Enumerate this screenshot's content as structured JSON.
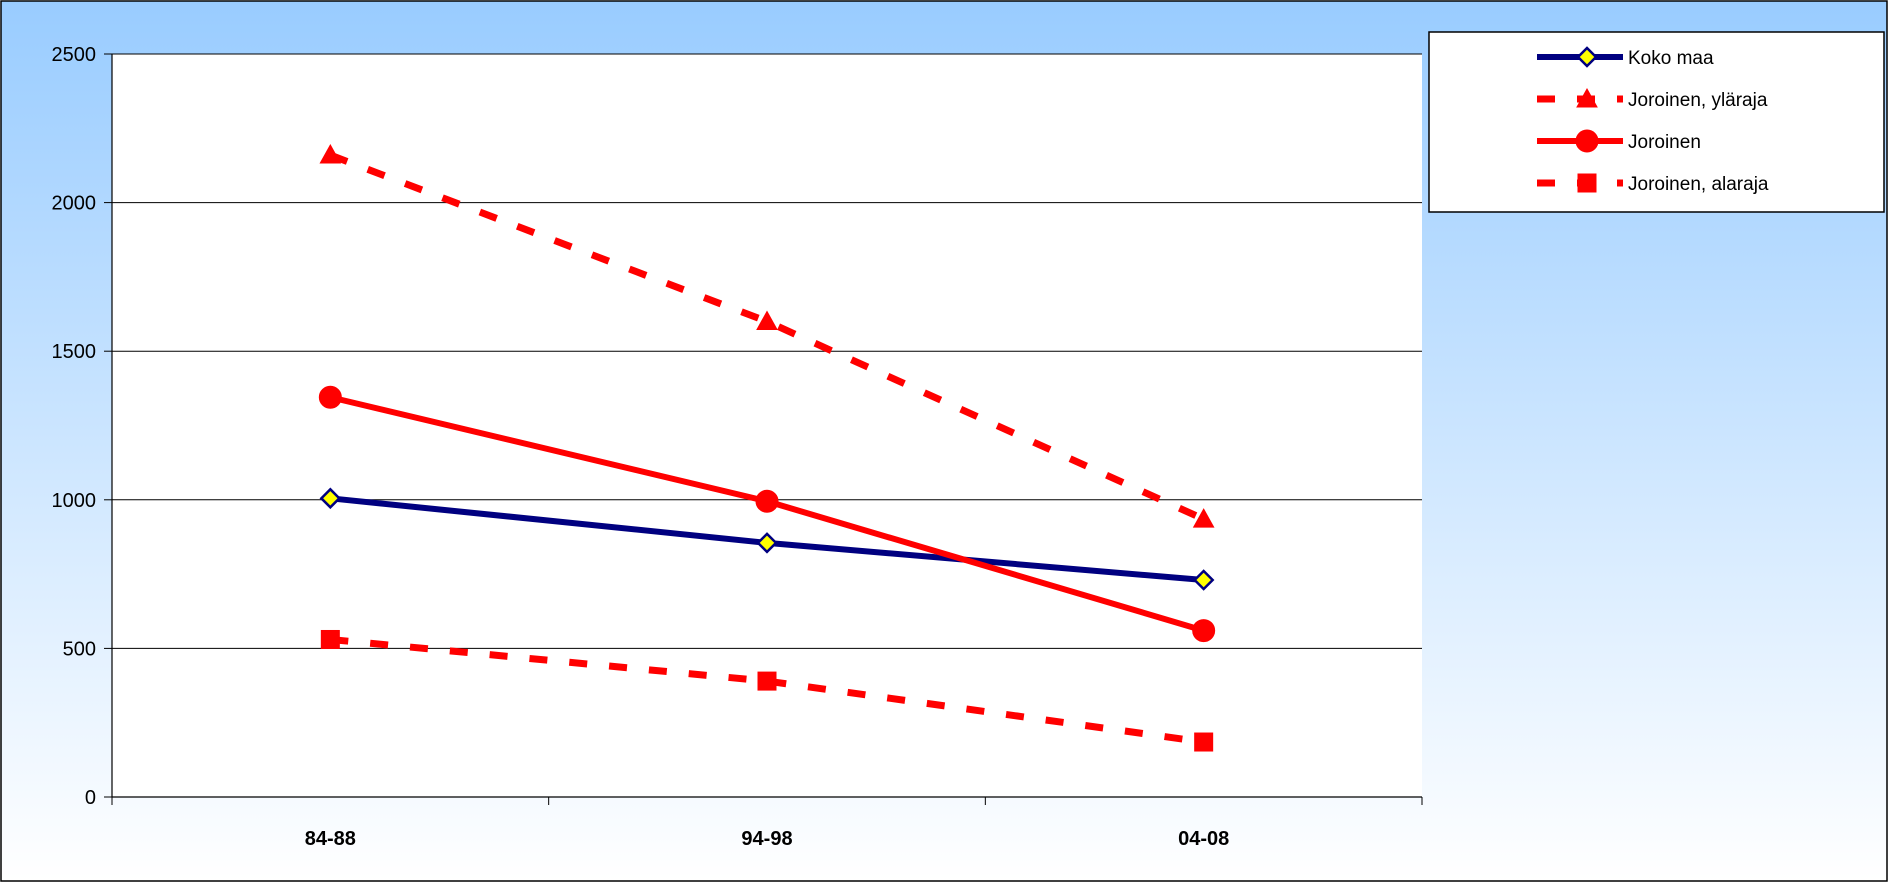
{
  "chart_data": {
    "type": "line",
    "title": "",
    "xlabel": "",
    "ylabel": "",
    "categories": [
      "84-88",
      "94-98",
      "04-08"
    ],
    "ylim": [
      0,
      2500
    ],
    "yticks": [
      0,
      500,
      1000,
      1500,
      2000,
      2500
    ],
    "grid": true,
    "legend_position": "top-right",
    "series": [
      {
        "name": "Koko maa",
        "values": [
          1005,
          855,
          730
        ],
        "color": "#000080",
        "dash": false,
        "marker": "diamond",
        "marker_fill": "#ffff00"
      },
      {
        "name": "Joroinen, yläraja",
        "values": [
          2160,
          1600,
          935
        ],
        "color": "#ff0000",
        "dash": true,
        "marker": "triangle",
        "marker_fill": "#ff0000"
      },
      {
        "name": "Joroinen",
        "values": [
          1345,
          995,
          560
        ],
        "color": "#ff0000",
        "dash": false,
        "marker": "circle",
        "marker_fill": "#ff0000"
      },
      {
        "name": "Joroinen, alaraja",
        "values": [
          530,
          390,
          185
        ],
        "color": "#ff0000",
        "dash": true,
        "marker": "square",
        "marker_fill": "#ff0000"
      }
    ]
  },
  "colors": {
    "background_top": "#99ccff",
    "background_bottom": "#ffffff",
    "plot_area": "#ffffff",
    "gridline": "#000000"
  }
}
